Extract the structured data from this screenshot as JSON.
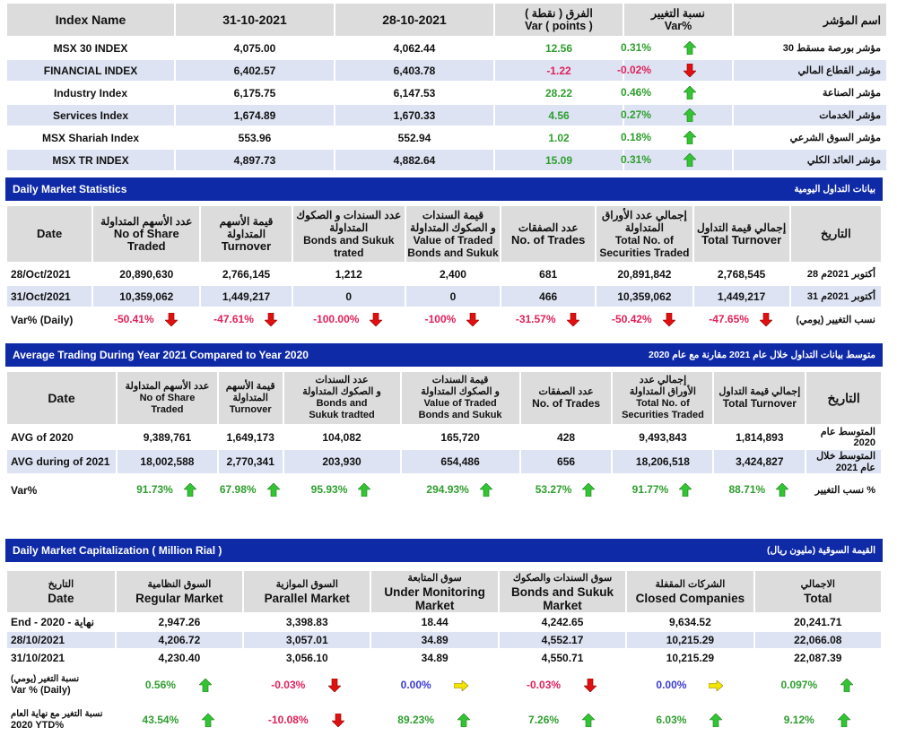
{
  "index_table": {
    "headers": {
      "name": "Index Name",
      "d1": "31-10-2021",
      "d2": "28-10-2021",
      "var_ar": "الفرق ( نقطة )",
      "var_en": "Var ( points )",
      "pct_ar": "نسبة التغيير",
      "pct_en": "Var%",
      "ar_name": "اسم المؤشر"
    },
    "rows": [
      {
        "name": "MSX 30 INDEX",
        "d1": "4,075.00",
        "d2": "4,062.44",
        "var": "12.56",
        "pct": "0.31%",
        "dir": "up",
        "ar": "مؤشر بورصة مسقط 30"
      },
      {
        "name": "FINANCIAL INDEX",
        "d1": "6,402.57",
        "d2": "6,403.78",
        "var": "-1.22",
        "pct": "-0.02%",
        "dir": "down",
        "ar": "مؤشر القطاع المالي"
      },
      {
        "name": "Industry Index",
        "d1": "6,175.75",
        "d2": "6,147.53",
        "var": "28.22",
        "pct": "0.46%",
        "dir": "up",
        "ar": "مؤشر الصناعة"
      },
      {
        "name": "Services Index",
        "d1": "1,674.89",
        "d2": "1,670.33",
        "var": "4.56",
        "pct": "0.27%",
        "dir": "up",
        "ar": "مؤشر الخدمات"
      },
      {
        "name": "MSX Shariah Index",
        "d1": "553.96",
        "d2": "552.94",
        "var": "1.02",
        "pct": "0.18%",
        "dir": "up",
        "ar": "مؤشر السوق الشرعي"
      },
      {
        "name": "MSX TR INDEX",
        "d1": "4,897.73",
        "d2": "4,882.64",
        "var": "15.09",
        "pct": "0.31%",
        "dir": "up",
        "ar": "مؤشر العائد الكلي"
      }
    ]
  },
  "daily_stats": {
    "band_en": "Daily Market Statistics",
    "band_ar": "بيانات التداول اليومية",
    "headers": [
      {
        "l1": "Date",
        "l2": "",
        "l3": "",
        "l4": ""
      },
      {
        "l1": "عدد الأسهم المتداولة",
        "l2": "No of Share Traded",
        "l3": "",
        "l4": ""
      },
      {
        "l1": "قيمة الأسهم المتداولة",
        "l2": "Turnover",
        "l3": "",
        "l4": ""
      },
      {
        "l1": "عدد السندات و الصكوك",
        "l2": "المتداولة",
        "l3": "Bonds and Sukuk",
        "l4": "trated"
      },
      {
        "l1": "قيمة السندات",
        "l2": "و الصكوك المتداولة",
        "l3": "Value of Traded",
        "l4": "Bonds and Sukuk"
      },
      {
        "l1": "عدد الصفقات",
        "l2": "No. of Trades",
        "l3": "",
        "l4": ""
      },
      {
        "l1": "إجمالي عدد الأوراق",
        "l2": "المتداولة",
        "l3": "Total No. of",
        "l4": "Securities Traded"
      },
      {
        "l1": "إجمالي قيمة التداول",
        "l2": "Total Turnover",
        "l3": "",
        "l4": ""
      },
      {
        "l1": "التاريخ",
        "l2": "",
        "l3": "",
        "l4": ""
      }
    ],
    "rows": [
      {
        "date": "28/Oct/2021",
        "v": [
          "20,890,630",
          "2,766,145",
          "1,212",
          "2,400",
          "681",
          "20,891,842",
          "2,768,545"
        ],
        "ar": "28 أكتوبر 2021م"
      },
      {
        "date": "31/Oct/2021",
        "v": [
          "10,359,062",
          "1,449,217",
          "0",
          "0",
          "466",
          "10,359,062",
          "1,449,217"
        ],
        "ar": "31 أكتوبر 2021م"
      }
    ],
    "var_row": {
      "label": "Var% (Daily)",
      "v": [
        "-50.41%",
        "-47.61%",
        "-100.00%",
        "-100%",
        "-31.57%",
        "-50.42%",
        "-47.65%"
      ],
      "ar": "نسب التغيير (يومي)"
    }
  },
  "avg_stats": {
    "band_en": "Average Trading During Year 2021 Compared to Year 2020",
    "band_ar": "متوسط بيانات التداول خلال عام 2021 مقارنة مع عام 2020",
    "headers": [
      {
        "l1": "Date",
        "l2": "",
        "l3": "",
        "l4": ""
      },
      {
        "l1": "عدد الأسهم المتداولة",
        "l2": "No of Share",
        "l3": "Traded",
        "l4": ""
      },
      {
        "l1": "قيمة الأسهم",
        "l2": "المتداولة",
        "l3": "Turnover",
        "l4": ""
      },
      {
        "l1": "عدد السندات",
        "l2": "و الصكوك المتداولة",
        "l3": "Bonds and",
        "l4": "Sukuk tradted"
      },
      {
        "l1": "قيمة السندات",
        "l2": "و الصكوك المتداولة",
        "l3": "Value of Traded",
        "l4": "Bonds and Sukuk"
      },
      {
        "l1": "عدد الصفقات",
        "l2": "No. of Trades",
        "l3": "",
        "l4": ""
      },
      {
        "l1": "إجمالي عدد",
        "l2": "الأوراق المتداولة",
        "l3": "Total No. of",
        "l4": "Securities Traded"
      },
      {
        "l1": "إجمالي قيمة التداول",
        "l2": "Total Turnover",
        "l3": "",
        "l4": ""
      },
      {
        "l1": "التاريخ",
        "l2": "",
        "l3": "",
        "l4": ""
      }
    ],
    "rows": [
      {
        "date": "AVG of 2020",
        "v": [
          "9,389,761",
          "1,649,173",
          "104,082",
          "165,720",
          "428",
          "9,493,843",
          "1,814,893"
        ],
        "ar": "المتوسط عام 2020"
      },
      {
        "date": "AVG during of 2021",
        "v": [
          "18,002,588",
          "2,770,341",
          "203,930",
          "654,486",
          "656",
          "18,206,518",
          "3,424,827"
        ],
        "ar": "المتوسط خلال عام 2021"
      }
    ],
    "var_row": {
      "label": "Var%",
      "v": [
        "91.73%",
        "67.98%",
        "95.93%",
        "294.93%",
        "53.27%",
        "91.77%",
        "88.71%"
      ],
      "ar": "نسب التغيير %"
    }
  },
  "capitalization": {
    "band_en": "Daily Market Capitalization ( Million Rial )",
    "band_ar": "القيمة السوقية (مليون ريال)",
    "headers": [
      {
        "ar": "التاريخ",
        "en": "Date",
        "en2": ""
      },
      {
        "ar": "السوق النظامية",
        "en": "Regular Market",
        "en2": ""
      },
      {
        "ar": "السوق الموازية",
        "en": "Parallel Market",
        "en2": ""
      },
      {
        "ar": "سوق المتابعة",
        "en": "Under Monitoring",
        "en2": "Market"
      },
      {
        "ar": "سوق السندات والصكوك",
        "en": "Bonds and Sukuk",
        "en2": "Market"
      },
      {
        "ar": "الشركات المقفلة",
        "en": "Closed Companies",
        "en2": ""
      },
      {
        "ar": "الاجمالي",
        "en": "Total",
        "en2": ""
      }
    ],
    "rows": [
      {
        "date": "End - 2020 - نهاية",
        "v": [
          "2,947.26",
          "3,398.83",
          "18.44",
          "4,242.65",
          "9,634.52",
          "20,241.71"
        ]
      },
      {
        "date": "28/10/2021",
        "v": [
          "4,206.72",
          "3,057.01",
          "34.89",
          "4,552.17",
          "10,215.29",
          "22,066.08"
        ]
      },
      {
        "date": "31/10/2021",
        "v": [
          "4,230.40",
          "3,056.10",
          "34.89",
          "4,550.71",
          "10,215.29",
          "22,087.39"
        ]
      }
    ],
    "var_daily": {
      "ar": "نسبة التغير (يومي)",
      "en": "Var % (Daily)",
      "v": [
        "0.56%",
        "-0.03%",
        "0.00%",
        "-0.03%",
        "0.00%",
        "0.097%"
      ],
      "dir": [
        "up",
        "down",
        "flat",
        "down",
        "flat",
        "up"
      ]
    },
    "var_ytd": {
      "ar": "نسبة التغير مع نهاية العام",
      "en": "2020 YTD%",
      "v": [
        "43.54%",
        "-10.08%",
        "89.23%",
        "7.26%",
        "6.03%",
        "9.12%"
      ],
      "dir": [
        "up",
        "down",
        "up",
        "up",
        "up",
        "up"
      ]
    }
  },
  "colors": {
    "band": "#0f2aa6",
    "pos": "#2e9e2e",
    "neg": "#e0205a",
    "neu": "#3a3ad8",
    "up_arrow": "#33c433",
    "down_arrow": "#e01010",
    "flat_arrow": "#f2e600"
  }
}
